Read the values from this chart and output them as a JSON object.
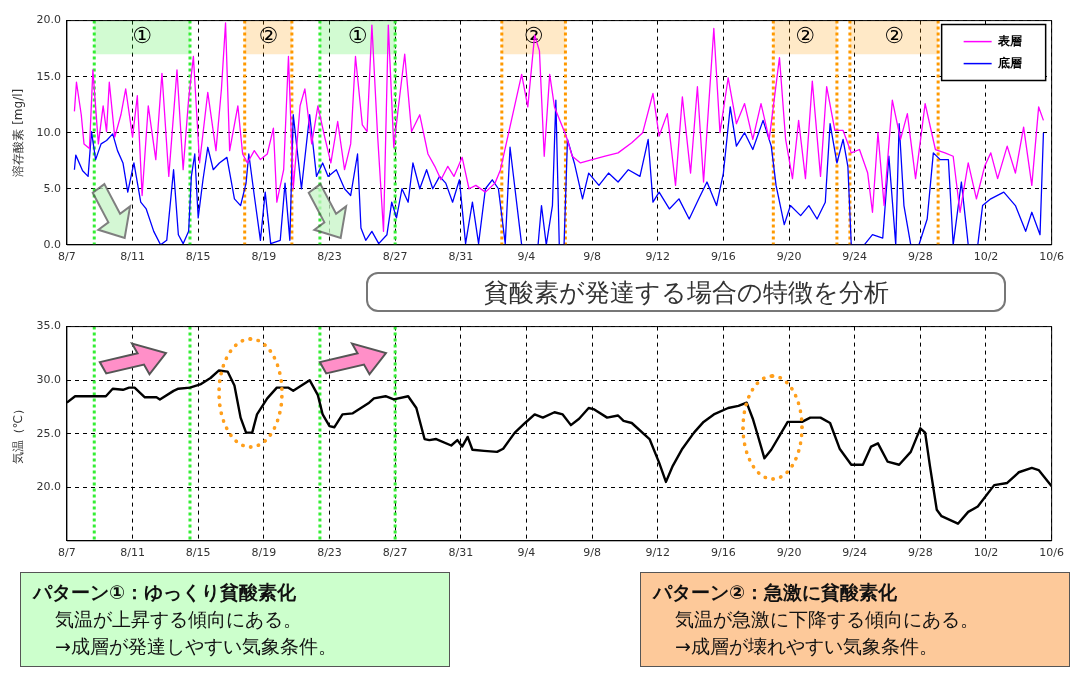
{
  "chart_data": [
    {
      "type": "line",
      "ylabel": "溶存酸素 [mg/l]",
      "xlim": [
        "--08-07",
        "--10-06"
      ],
      "xticks": [
        {
          "value": "--08-07",
          "label": "8/7"
        },
        {
          "value": "--08-11",
          "label": "8/11"
        },
        {
          "value": "--08-15",
          "label": "8/15"
        },
        {
          "value": "--08-19",
          "label": "8/19"
        },
        {
          "value": "--08-23",
          "label": "8/23"
        },
        {
          "value": "--08-27",
          "label": "8/27"
        },
        {
          "value": "--08-31",
          "label": "8/31"
        },
        {
          "value": "--09-04",
          "label": "9/4"
        },
        {
          "value": "--09-08",
          "label": "9/8"
        },
        {
          "value": "--09-12",
          "label": "9/12"
        },
        {
          "value": "--09-16",
          "label": "9/16"
        },
        {
          "value": "--09-20",
          "label": "9/20"
        },
        {
          "value": "--09-24",
          "label": "9/24"
        },
        {
          "value": "--09-28",
          "label": "9/28"
        },
        {
          "value": "--10-02",
          "label": "10/2"
        },
        {
          "value": "--10-06",
          "label": "10/6"
        }
      ],
      "ylim": [
        0,
        20
      ],
      "yticks": [
        {
          "value": 0,
          "label": "0.0"
        },
        {
          "value": 5,
          "label": "5.0"
        },
        {
          "value": 10,
          "label": "10.0"
        },
        {
          "value": 15,
          "label": "15.0"
        },
        {
          "value": 20,
          "label": "20.0"
        }
      ],
      "grid": true,
      "legend": "top right",
      "bands": [
        {
          "axis": "x",
          "from": "--08-08T16:00",
          "to": "--08-14T12:00",
          "label": "①",
          "color": "#33ee33"
        },
        {
          "axis": "x",
          "from": "--08-17T20:00",
          "to": "--08-20T17:00",
          "label": "②",
          "color": "#ff9900"
        },
        {
          "axis": "x",
          "from": "--08-22T10:00",
          "to": "--08-27T00:00",
          "label": "①",
          "color": "#33ee33"
        },
        {
          "axis": "x",
          "from": "--09-02T12:00",
          "to": "--09-06T09:00",
          "label": "②",
          "color": "#ff9900"
        },
        {
          "axis": "x",
          "from": "--09-19T01:00",
          "to": "--09-22T22:00",
          "label": "②",
          "color": "#ff9900"
        },
        {
          "axis": "x",
          "from": "--09-23T17:00",
          "to": "--09-29T02:00",
          "label": "②",
          "color": "#ff9900"
        }
      ],
      "ref_lines": [
        {
          "axis": "x",
          "value": "--08-08T16:00",
          "color": "#33ee33",
          "line_style": "dotted"
        },
        {
          "axis": "x",
          "value": "--08-14T12:00",
          "color": "#33ee33",
          "line_style": "dotted"
        },
        {
          "axis": "x",
          "value": "--08-17T20:00",
          "color": "#ff9900",
          "line_style": "dotted"
        },
        {
          "axis": "x",
          "value": "--08-20T17:00",
          "color": "#ff9900",
          "line_style": "dotted"
        },
        {
          "axis": "x",
          "value": "--08-22T10:00",
          "color": "#33ee33",
          "line_style": "dotted"
        },
        {
          "axis": "x",
          "value": "--08-27T00:00",
          "color": "#33ee33",
          "line_style": "dotted"
        },
        {
          "axis": "x",
          "value": "--09-02T12:00",
          "color": "#ff9900",
          "line_style": "dotted"
        },
        {
          "axis": "x",
          "value": "--09-06T09:00",
          "color": "#ff9900",
          "line_style": "dotted"
        },
        {
          "axis": "x",
          "value": "--09-19T01:00",
          "color": "#ff9900",
          "line_style": "dotted"
        },
        {
          "axis": "x",
          "value": "--09-22T22:00",
          "color": "#ff9900",
          "line_style": "dotted"
        },
        {
          "axis": "x",
          "value": "--09-23T17:00",
          "color": "#ff9900",
          "line_style": "dotted"
        },
        {
          "axis": "x",
          "value": "--09-29T02:00",
          "color": "#ff9900",
          "line_style": "dotted"
        }
      ],
      "annotations": [
        "貧酸素が発達する場合の特徴を分析"
      ],
      "series": [
        {
          "name": "表層",
          "color": "#ff00ff",
          "x": [
            "--08-07T11:00",
            "--08-07T14:00",
            "--08-07T21:00",
            "--08-08T01:00",
            "--08-08T09:00",
            "--08-08T14:00",
            "--08-08T22:00",
            "--08-09T05:00",
            "--08-09T10:00",
            "--08-09T14:00",
            "--08-09T22:00",
            "--08-10T07:00",
            "--08-10T14:00",
            "--08-11T00:00",
            "--08-11T07:00",
            "--08-11T14:00",
            "--08-11T23:00",
            "--08-12T10:00",
            "--08-12T19:00",
            "--08-13T05:00",
            "--08-13T17:00",
            "--08-14T02:00",
            "--08-14T10:00",
            "--08-14T17:00",
            "--08-15T02:00",
            "--08-15T14:00",
            "--08-16T02:00",
            "--08-16T10:00",
            "--08-16T16:00",
            "--08-16T22:00",
            "--08-17T10:00",
            "--08-17T17:00",
            "--08-18T00:00",
            "--08-18T10:00",
            "--08-18T19:00",
            "--08-19T05:00",
            "--08-19T14:00",
            "--08-19T19:00",
            "--08-20T05:00",
            "--08-20T12:00",
            "--08-20T19:00",
            "--08-21T05:00",
            "--08-21T12:00",
            "--08-21T22:00",
            "--08-22T07:00",
            "--08-22T17:00",
            "--08-23T02:00",
            "--08-23T12:00",
            "--08-23T22:00",
            "--08-24T07:00",
            "--08-24T14:00",
            "--08-25T00:00",
            "--08-25T07:00",
            "--08-25T14:00",
            "--08-25T22:00",
            "--08-26T07:00",
            "--08-26T14:00",
            "--08-26T22:00",
            "--08-27T05:00",
            "--08-27T14:00",
            "--08-28T00:00",
            "--08-28T12:00",
            "--08-29T00:00",
            "--08-29T10:00",
            "--08-29T19:00",
            "--08-30T05:00",
            "--08-30T14:00",
            "--08-31T02:00",
            "--08-31T12:00",
            "--08-31T22:00",
            "--09-01T12:00",
            "--09-02T02:00",
            "--09-02T10:00",
            "--09-03T17:00",
            "--09-04T02:00",
            "--09-04T12:00",
            "--09-04T19:00",
            "--09-05T02:00",
            "--09-05T10:00",
            "--09-05T17:00",
            "--09-06T10:00",
            "--09-06T19:00",
            "--09-07T07:00",
            "--09-08T00:00",
            "--09-08T19:00",
            "--09-09T14:00",
            "--09-10T10:00",
            "--09-11T02:00",
            "--09-11T17:00",
            "--09-12T02:00",
            "--09-12T14:00",
            "--09-13T02:00",
            "--09-13T12:00",
            "--09-14T00:00",
            "--09-14T10:00",
            "--09-14T19:00",
            "--09-15T10:00",
            "--09-15T19:00",
            "--09-16T07:00",
            "--09-16T19:00",
            "--09-17T07:00",
            "--09-17T19:00",
            "--09-18T07:00",
            "--09-18T19:00",
            "--09-19T10:00",
            "--09-19T19:00",
            "--09-20T05:00",
            "--09-20T14:00",
            "--09-21T00:00",
            "--09-21T10:00",
            "--09-21T22:00",
            "--09-22T07:00",
            "--09-22T19:00",
            "--09-23T07:00",
            "--09-23T19:00",
            "--09-24T07:00",
            "--09-24T19:00",
            "--09-25T02:00",
            "--09-25T10:00",
            "--09-25T19:00",
            "--09-26T07:00",
            "--09-26T19:00",
            "--09-27T05:00",
            "--09-27T17:00",
            "--09-28T07:00",
            "--09-28T22:00",
            "--09-29T12:00",
            "--09-30T00:00",
            "--09-30T10:00",
            "--09-30T22:00",
            "--10-01T10:00",
            "--10-01T22:00",
            "--10-02T07:00",
            "--10-02T17:00",
            "--10-03T07:00",
            "--10-03T19:00",
            "--10-04T07:00",
            "--10-04T19:00",
            "--10-05T05:00",
            "--10-05T12:00"
          ],
          "values": [
            11.9,
            14.5,
            11.6,
            9.0,
            8.6,
            15.6,
            9.0,
            12.4,
            10.1,
            14.5,
            9.6,
            11.6,
            13.9,
            9.6,
            13.3,
            4.4,
            12.4,
            7.6,
            15.3,
            6.1,
            15.6,
            6.7,
            13.0,
            16.8,
            7.3,
            13.6,
            8.4,
            13.9,
            19.8,
            8.4,
            12.4,
            8.1,
            7.3,
            8.4,
            7.6,
            8.1,
            10.4,
            3.8,
            6.7,
            16.8,
            5.0,
            12.4,
            13.9,
            9.0,
            12.4,
            9.6,
            7.3,
            11.0,
            6.7,
            9.0,
            16.8,
            10.7,
            10.1,
            19.6,
            10.1,
            1.2,
            19.6,
            8.7,
            12.4,
            17.0,
            10.1,
            11.6,
            8.1,
            7.0,
            5.8,
            7.0,
            6.1,
            7.8,
            5.0,
            5.3,
            4.7,
            5.5,
            6.7,
            15.2,
            12.3,
            18.7,
            17.3,
            7.9,
            15.2,
            12.3,
            9.7,
            7.9,
            7.3,
            7.6,
            7.9,
            8.2,
            9.1,
            10.0,
            13.5,
            9.7,
            11.7,
            5.3,
            13.2,
            6.4,
            14.1,
            5.6,
            19.3,
            10.0,
            14.9,
            10.8,
            12.6,
            9.4,
            12.6,
            9.4,
            16.7,
            9.4,
            5.9,
            11.1,
            5.9,
            14.6,
            6.1,
            14.1,
            10.2,
            10.2,
            8.2,
            8.5,
            6.4,
            2.9,
            10.0,
            3.5,
            12.9,
            9.4,
            11.7,
            5.9,
            12.6,
            8.5,
            8.2,
            7.9,
            2.9,
            7.3,
            4.1,
            7.0,
            8.2,
            5.9,
            8.8,
            6.4,
            10.5,
            5.3,
            12.3,
            11.1
          ]
        },
        {
          "name": "底層",
          "color": "#0000ff",
          "x": [
            "--08-07T11:00",
            "--08-07T13:00",
            "--08-07T23:00",
            "--08-08T07:00",
            "--08-08T12:00",
            "--08-08T18:00",
            "--08-09T02:00",
            "--08-09T10:00",
            "--08-09T19:00",
            "--08-10T02:00",
            "--08-10T10:00",
            "--08-10T17:00",
            "--08-11T02:00",
            "--08-11T12:00",
            "--08-11T20:00",
            "--08-12T07:00",
            "--08-12T17:00",
            "--08-13T02:00",
            "--08-13T12:00",
            "--08-13T19:00",
            "--08-14T02:00",
            "--08-14T10:00",
            "--08-14T14:00",
            "--08-14T19:00",
            "--08-15T00:00",
            "--08-15T07:00",
            "--08-15T14:00",
            "--08-15T22:00",
            "--08-16T07:00",
            "--08-16T18:00",
            "--08-17T05:00",
            "--08-17T14:00",
            "--08-17T22:00",
            "--08-18T02:00",
            "--08-18T10:00",
            "--08-18T19:00",
            "--08-19T02:00",
            "--08-19T10:00",
            "--08-20T00:00",
            "--08-20T07:00",
            "--08-20T14:00",
            "--08-20T19:00",
            "--08-21T07:00",
            "--08-21T19:00",
            "--08-22T05:00",
            "--08-22T14:00",
            "--08-22T22:00",
            "--08-23T10:00",
            "--08-23T22:00",
            "--08-24T07:00",
            "--08-24T17:00",
            "--08-24T22:00",
            "--08-25T05:00",
            "--08-25T14:00",
            "--08-26T00:00",
            "--08-26T12:00",
            "--08-26T19:00",
            "--08-27T02:00",
            "--08-27T10:00",
            "--08-27T19:00",
            "--08-28T02:00",
            "--08-28T12:00",
            "--08-28T22:00",
            "--08-29T07:00",
            "--08-29T17:00",
            "--08-30T02:00",
            "--08-30T12:00",
            "--08-30T22:00",
            "--08-31T07:00",
            "--08-31T17:00",
            "--09-01T02:00",
            "--09-01T12:00",
            "--09-01T22:00",
            "--09-02T07:00",
            "--09-02T17:00",
            "--09-03T00:00",
            "--09-03T17:00",
            "--09-04T17:00",
            "--09-04T22:00",
            "--09-05T05:00",
            "--09-05T14:00",
            "--09-05T19:00",
            "--09-06T00:00",
            "--09-06T07:00",
            "--09-06T12:00",
            "--09-06T22:00",
            "--09-07T10:00",
            "--09-07T19:00",
            "--09-08T10:00",
            "--09-09T00:00",
            "--09-09T14:00",
            "--09-10T05:00",
            "--09-10T22:00",
            "--09-11T10:00",
            "--09-11T17:00",
            "--09-12T02:00",
            "--09-12T17:00",
            "--09-13T07:00",
            "--09-13T22:00",
            "--09-14T12:00",
            "--09-15T00:00",
            "--09-15T14:00",
            "--09-16T00:00",
            "--09-16T10:00",
            "--09-16T19:00",
            "--09-17T07:00",
            "--09-17T19:00",
            "--09-18T10:00",
            "--09-18T22:00",
            "--09-19T05:00",
            "--09-19T17:00",
            "--09-20T02:00",
            "--09-20T17:00",
            "--09-21T05:00",
            "--09-21T17:00",
            "--09-22T05:00",
            "--09-22T12:00",
            "--09-22T22:00",
            "--09-23T07:00",
            "--09-23T14:00",
            "--09-23T19:00",
            "--09-24T14:00",
            "--09-25T02:00",
            "--09-25T17:00",
            "--09-26T02:00",
            "--09-26T12:00",
            "--09-26T17:00",
            "--09-27T00:00",
            "--09-27T10:00",
            "--09-27T22:00",
            "--09-28T10:00",
            "--09-28T19:00",
            "--09-29T05:00",
            "--09-29T17:00",
            "--09-30T00:00",
            "--09-30T12:00",
            "--09-30T22:00",
            "--10-01T12:00",
            "--10-01T19:00",
            "--10-02T07:00",
            "--10-03T02:00",
            "--10-03T19:00",
            "--10-04T10:00",
            "--10-04T19:00",
            "--10-05T07:00",
            "--10-05T12:00"
          ],
          "values": [
            6.7,
            8.0,
            6.6,
            6.1,
            10.1,
            7.6,
            9.0,
            9.3,
            9.9,
            8.4,
            7.3,
            4.7,
            7.3,
            3.8,
            3.2,
            1.2,
            0,
            0.4,
            6.7,
            0.9,
            0.1,
            1.2,
            6.1,
            8.1,
            2.4,
            5.8,
            8.7,
            6.7,
            7.3,
            7.8,
            4.1,
            3.5,
            5.5,
            8.1,
            4.4,
            0.4,
            4.7,
            0.1,
            0.4,
            5.5,
            0.4,
            11.6,
            5.0,
            11.6,
            6.1,
            7.3,
            6.1,
            6.7,
            5.0,
            4.4,
            8.1,
            1.5,
            0.4,
            1.2,
            0.1,
            0.9,
            3.8,
            2.4,
            5.0,
            3.8,
            7.3,
            5.0,
            6.7,
            5.0,
            6.1,
            5.5,
            3.8,
            5.8,
            0.1,
            3.8,
            0.1,
            5.0,
            5.8,
            5.0,
            0.1,
            8.7,
            0,
            0,
            3.5,
            0,
            3.5,
            12.9,
            0,
            0,
            9.4,
            7.3,
            4.1,
            6.4,
            5.3,
            6.4,
            5.6,
            6.7,
            6.1,
            9.4,
            3.8,
            4.7,
            3.2,
            4.1,
            2.3,
            4.1,
            5.6,
            3.5,
            6.4,
            12.3,
            8.8,
            10.0,
            8.5,
            11.1,
            8.8,
            5.3,
            1.8,
            3.5,
            2.6,
            3.5,
            2.3,
            3.8,
            10.8,
            7.3,
            9.4,
            7.0,
            0,
            0,
            0.9,
            0.6,
            7.9,
            0,
            10.8,
            3.5,
            0,
            0,
            2.3,
            8.2,
            7.6,
            7.6,
            0,
            5.6,
            0,
            0,
            3.5,
            4.1,
            4.7,
            3.5,
            1.2,
            2.9,
            0.9,
            10.0
          ]
        }
      ]
    },
    {
      "type": "line",
      "ylabel": "気温（℃）",
      "xlim": [
        "--08-07",
        "--10-06"
      ],
      "xticks": [
        {
          "value": "--08-07",
          "label": "8/7"
        },
        {
          "value": "--08-11",
          "label": "8/11"
        },
        {
          "value": "--08-15",
          "label": "8/15"
        },
        {
          "value": "--08-19",
          "label": "8/19"
        },
        {
          "value": "--08-23",
          "label": "8/23"
        },
        {
          "value": "--08-27",
          "label": "8/27"
        },
        {
          "value": "--08-31",
          "label": "8/31"
        },
        {
          "value": "--09-04",
          "label": "9/4"
        },
        {
          "value": "--09-08",
          "label": "9/8"
        },
        {
          "value": "--09-12",
          "label": "9/12"
        },
        {
          "value": "--09-16",
          "label": "9/16"
        },
        {
          "value": "--09-20",
          "label": "9/20"
        },
        {
          "value": "--09-24",
          "label": "9/24"
        },
        {
          "value": "--09-28",
          "label": "9/28"
        },
        {
          "value": "--10-02",
          "label": "10/2"
        },
        {
          "value": "--10-06",
          "label": "10/6"
        }
      ],
      "ylim": [
        15,
        35
      ],
      "yticks": [
        {
          "value": 20,
          "label": "20.0"
        },
        {
          "value": 25,
          "label": "25.0"
        },
        {
          "value": 30,
          "label": "30.0"
        },
        {
          "value": 35,
          "label": "35.0"
        }
      ],
      "grid": true,
      "ref_lines": [
        {
          "axis": "x",
          "value": "--08-08T16:00",
          "color": "#33ee33",
          "line_style": "dotted"
        },
        {
          "axis": "x",
          "value": "--08-14T12:00",
          "color": "#33ee33",
          "line_style": "dotted"
        },
        {
          "axis": "x",
          "value": "--08-22T10:00",
          "color": "#33ee33",
          "line_style": "dotted"
        },
        {
          "axis": "x",
          "value": "--08-27T00:00",
          "color": "#33ee33",
          "line_style": "dotted"
        }
      ],
      "annotations": [
        "パターン①：ゆっくり貧酸素化",
        "気温が上昇する傾向にある。",
        "→成層が発達しやすい気象条件。",
        "パターン②：急激に貧酸素化",
        "気温が急激に下降する傾向にある。",
        "→成層が壊れやすい気象条件。"
      ],
      "series": [
        {
          "color": "#000000",
          "x": [
            "--08-07T00:00",
            "--08-07T12:00",
            "--08-09T09:00",
            "--08-09T19:00",
            "--08-10T10:00",
            "--08-10T19:00",
            "--08-11T03:00",
            "--08-11T18:00",
            "--08-12T11:00",
            "--08-12T16:00",
            "--08-13T12:00",
            "--08-13T19:00",
            "--08-14T12:00",
            "--08-15T03:00",
            "--08-15T18:00",
            "--08-16T06:00",
            "--08-16T19:00",
            "--08-17T05:00",
            "--08-17T14:00",
            "--08-17T22:00",
            "--08-18T07:00",
            "--08-18T14:00",
            "--08-19T05:00",
            "--08-19T19:00",
            "--08-20T12:00",
            "--08-20T19:00",
            "--08-21T19:00",
            "--08-22T07:00",
            "--08-22T14:00",
            "--08-23T00:00",
            "--08-23T07:00",
            "--08-23T19:00",
            "--08-24T10:00",
            "--08-25T10:00",
            "--08-25T17:00",
            "--08-26T10:00",
            "--08-26T22:00",
            "--08-27T19:00",
            "--08-28T07:00",
            "--08-28T19:00",
            "--08-29T02:00",
            "--08-29T12:00",
            "--08-30T10:00",
            "--08-30T19:00",
            "--08-31T02:00",
            "--08-31T10:00",
            "--08-31T17:00",
            "--09-01T10:00",
            "--09-02T05:00",
            "--09-02T14:00",
            "--09-03T07:00",
            "--09-03T22:00",
            "--09-04T12:00",
            "--09-05T00:00",
            "--09-05T17:00",
            "--09-06T05:00",
            "--09-06T17:00",
            "--09-07T05:00",
            "--09-07T19:00",
            "--09-08T02:00",
            "--09-08T22:00",
            "--09-09T14:00",
            "--09-09T22:00",
            "--09-10T10:00",
            "--09-11T12:00",
            "--09-12T02:00",
            "--09-12T12:00",
            "--09-12T22:00",
            "--09-13T12:00",
            "--09-14T05:00",
            "--09-14T19:00",
            "--09-15T10:00",
            "--09-16T07:00",
            "--09-16T22:00",
            "--09-17T10:00",
            "--09-17T19:00",
            "--09-18T02:00",
            "--09-18T12:00",
            "--09-18T22:00",
            "--09-19T22:00",
            "--09-20T19:00",
            "--09-21T07:00",
            "--09-21T22:00",
            "--09-22T12:00",
            "--09-23T02:00",
            "--09-23T19:00",
            "--09-24T12:00",
            "--09-25T00:00",
            "--09-25T10:00",
            "--09-26T00:00",
            "--09-26T17:00",
            "--09-27T10:00",
            "--09-28T00:00",
            "--09-28T07:00",
            "--09-28T14:00",
            "--09-29T00:00",
            "--09-29T07:00",
            "--09-30T07:00",
            "--09-30T22:00",
            "--10-01T12:00",
            "--10-02T12:00",
            "--10-03T07:00",
            "--10-04T00:00",
            "--10-04T19:00",
            "--10-05T05:00",
            "--10-06T00:00"
          ],
          "values": [
            27.9,
            28.5,
            28.5,
            29.2,
            29.1,
            29.3,
            29.3,
            28.4,
            28.4,
            28.2,
            29.0,
            29.2,
            29.3,
            29.6,
            30.2,
            30.9,
            30.8,
            29.5,
            26.5,
            25.1,
            25.1,
            26.8,
            28.3,
            29.3,
            29.3,
            29.0,
            30.0,
            28.6,
            26.8,
            25.7,
            25.6,
            26.8,
            26.9,
            27.9,
            28.3,
            28.5,
            28.2,
            28.5,
            27.4,
            24.5,
            24.4,
            24.5,
            23.9,
            24.4,
            23.8,
            24.7,
            23.5,
            23.4,
            23.3,
            23.6,
            25.1,
            26.0,
            26.8,
            26.5,
            27.0,
            26.8,
            25.8,
            26.4,
            27.4,
            27.3,
            26.5,
            26.7,
            26.2,
            26.0,
            24.5,
            22.3,
            20.5,
            22.0,
            23.6,
            25.1,
            26.1,
            26.8,
            27.4,
            27.6,
            27.9,
            26.4,
            24.9,
            22.7,
            23.5,
            26.1,
            26.1,
            26.5,
            26.5,
            26.0,
            23.6,
            22.1,
            22.1,
            23.8,
            24.1,
            22.4,
            22.1,
            23.3,
            25.5,
            25.1,
            22.0,
            17.9,
            17.3,
            16.6,
            17.7,
            18.2,
            20.2,
            20.4,
            21.4,
            21.8,
            21.6,
            20.1
          ]
        }
      ]
    }
  ]
}
